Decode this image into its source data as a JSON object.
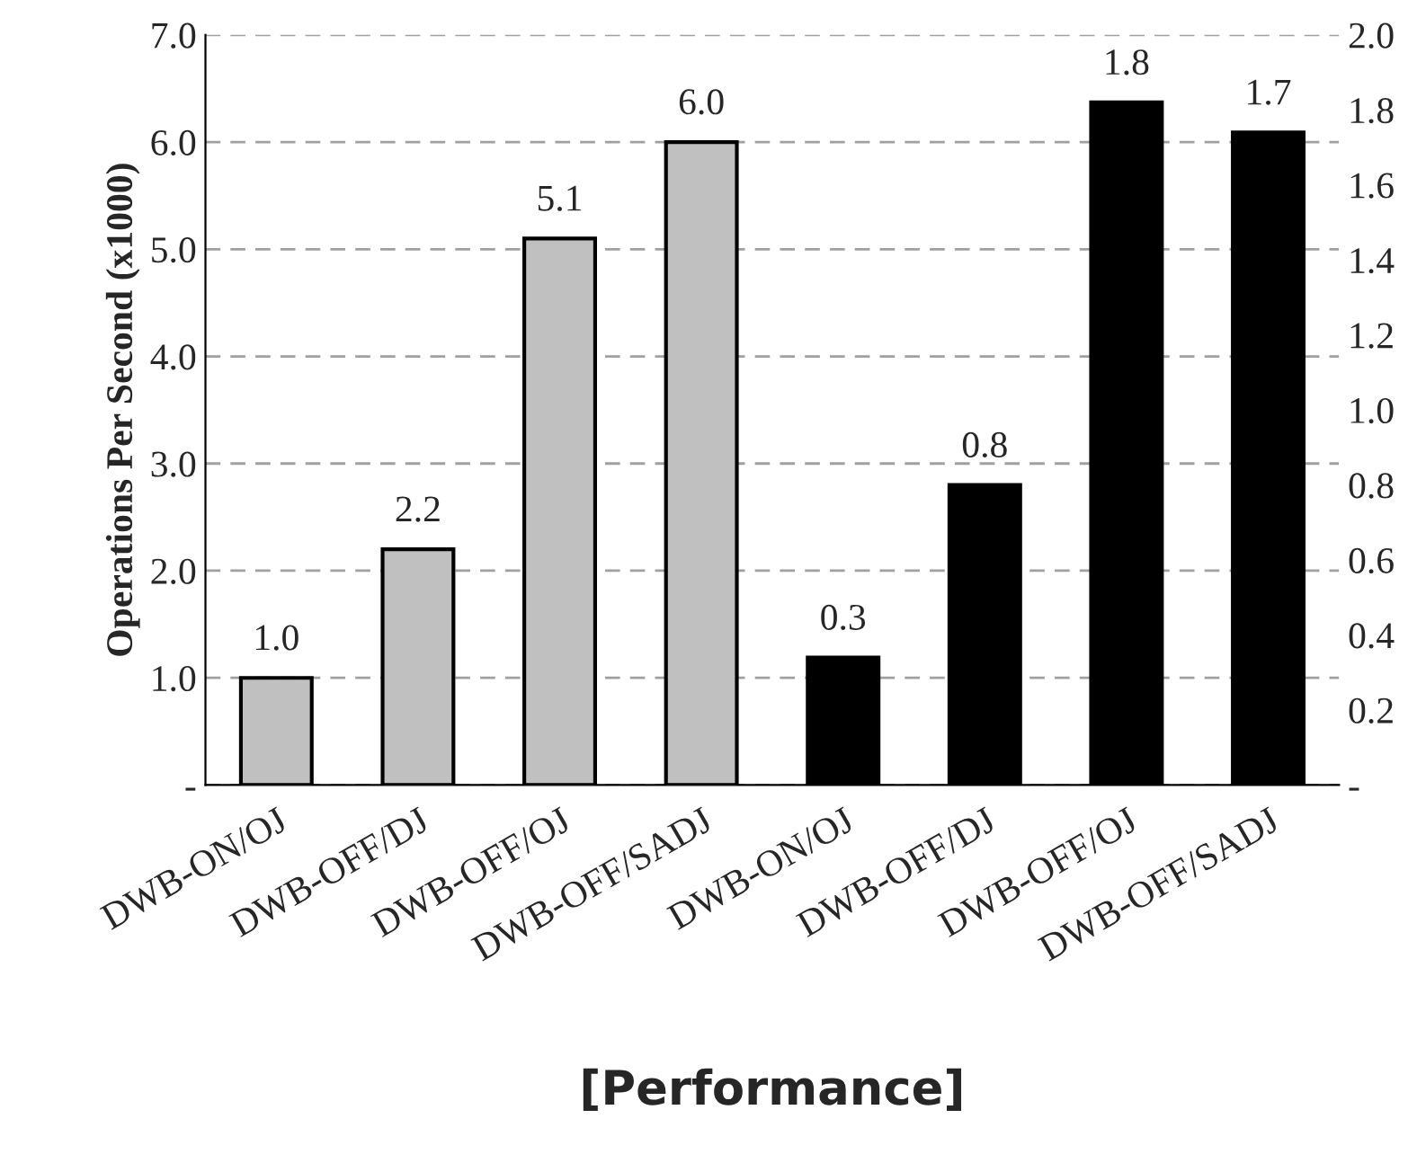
{
  "chart_data": {
    "type": "bar",
    "xlabel": "[Performance]",
    "ylabel": "Operations Per Second (x1000)",
    "categories": [
      "DWB-ON/OJ",
      "DWB-OFF/DJ",
      "DWB-OFF/OJ",
      "DWB-OFF/SADJ",
      "DWB-ON/OJ",
      "DWB-OFF/DJ",
      "DWB-OFF/OJ",
      "DWB-OFF/SADJ"
    ],
    "series": [
      {
        "color": "#c0c0c0",
        "values": [
          1.0,
          2.2,
          5.1,
          6.0,
          null,
          null,
          null,
          null
        ],
        "value_labels": [
          "1.0",
          "2.2",
          "5.1",
          "6.0",
          null,
          null,
          null,
          null
        ]
      },
      {
        "color": "#000000",
        "axis": "y2",
        "values": [
          null,
          null,
          null,
          null,
          0.34,
          0.8,
          1.82,
          1.74
        ],
        "value_labels": [
          null,
          null,
          null,
          null,
          "0.3",
          "0.8",
          "1.8",
          "1.7"
        ]
      }
    ],
    "ylim": [
      0,
      7
    ],
    "yticks": [
      {
        "value": 0,
        "label": "-"
      },
      {
        "value": 1,
        "label": "1.0"
      },
      {
        "value": 2,
        "label": "2.0"
      },
      {
        "value": 3,
        "label": "3.0"
      },
      {
        "value": 4,
        "label": "4.0"
      },
      {
        "value": 5,
        "label": "5.0"
      },
      {
        "value": 6,
        "label": "6.0"
      },
      {
        "value": 7,
        "label": "7.0"
      }
    ],
    "y2lim": [
      0,
      2
    ],
    "y2ticks": [
      {
        "value": 0,
        "label": "-"
      },
      {
        "value": 0.2,
        "label": "0.2"
      },
      {
        "value": 0.4,
        "label": "0.4"
      },
      {
        "value": 0.6,
        "label": "0.6"
      },
      {
        "value": 0.8,
        "label": "0.8"
      },
      {
        "value": 1.0,
        "label": "1.0"
      },
      {
        "value": 1.2,
        "label": "1.2"
      },
      {
        "value": 1.4,
        "label": "1.4"
      },
      {
        "value": 1.6,
        "label": "1.6"
      },
      {
        "value": 1.8,
        "label": "1.8"
      },
      {
        "value": 2.0,
        "label": "2.0"
      }
    ],
    "grid": "y"
  }
}
